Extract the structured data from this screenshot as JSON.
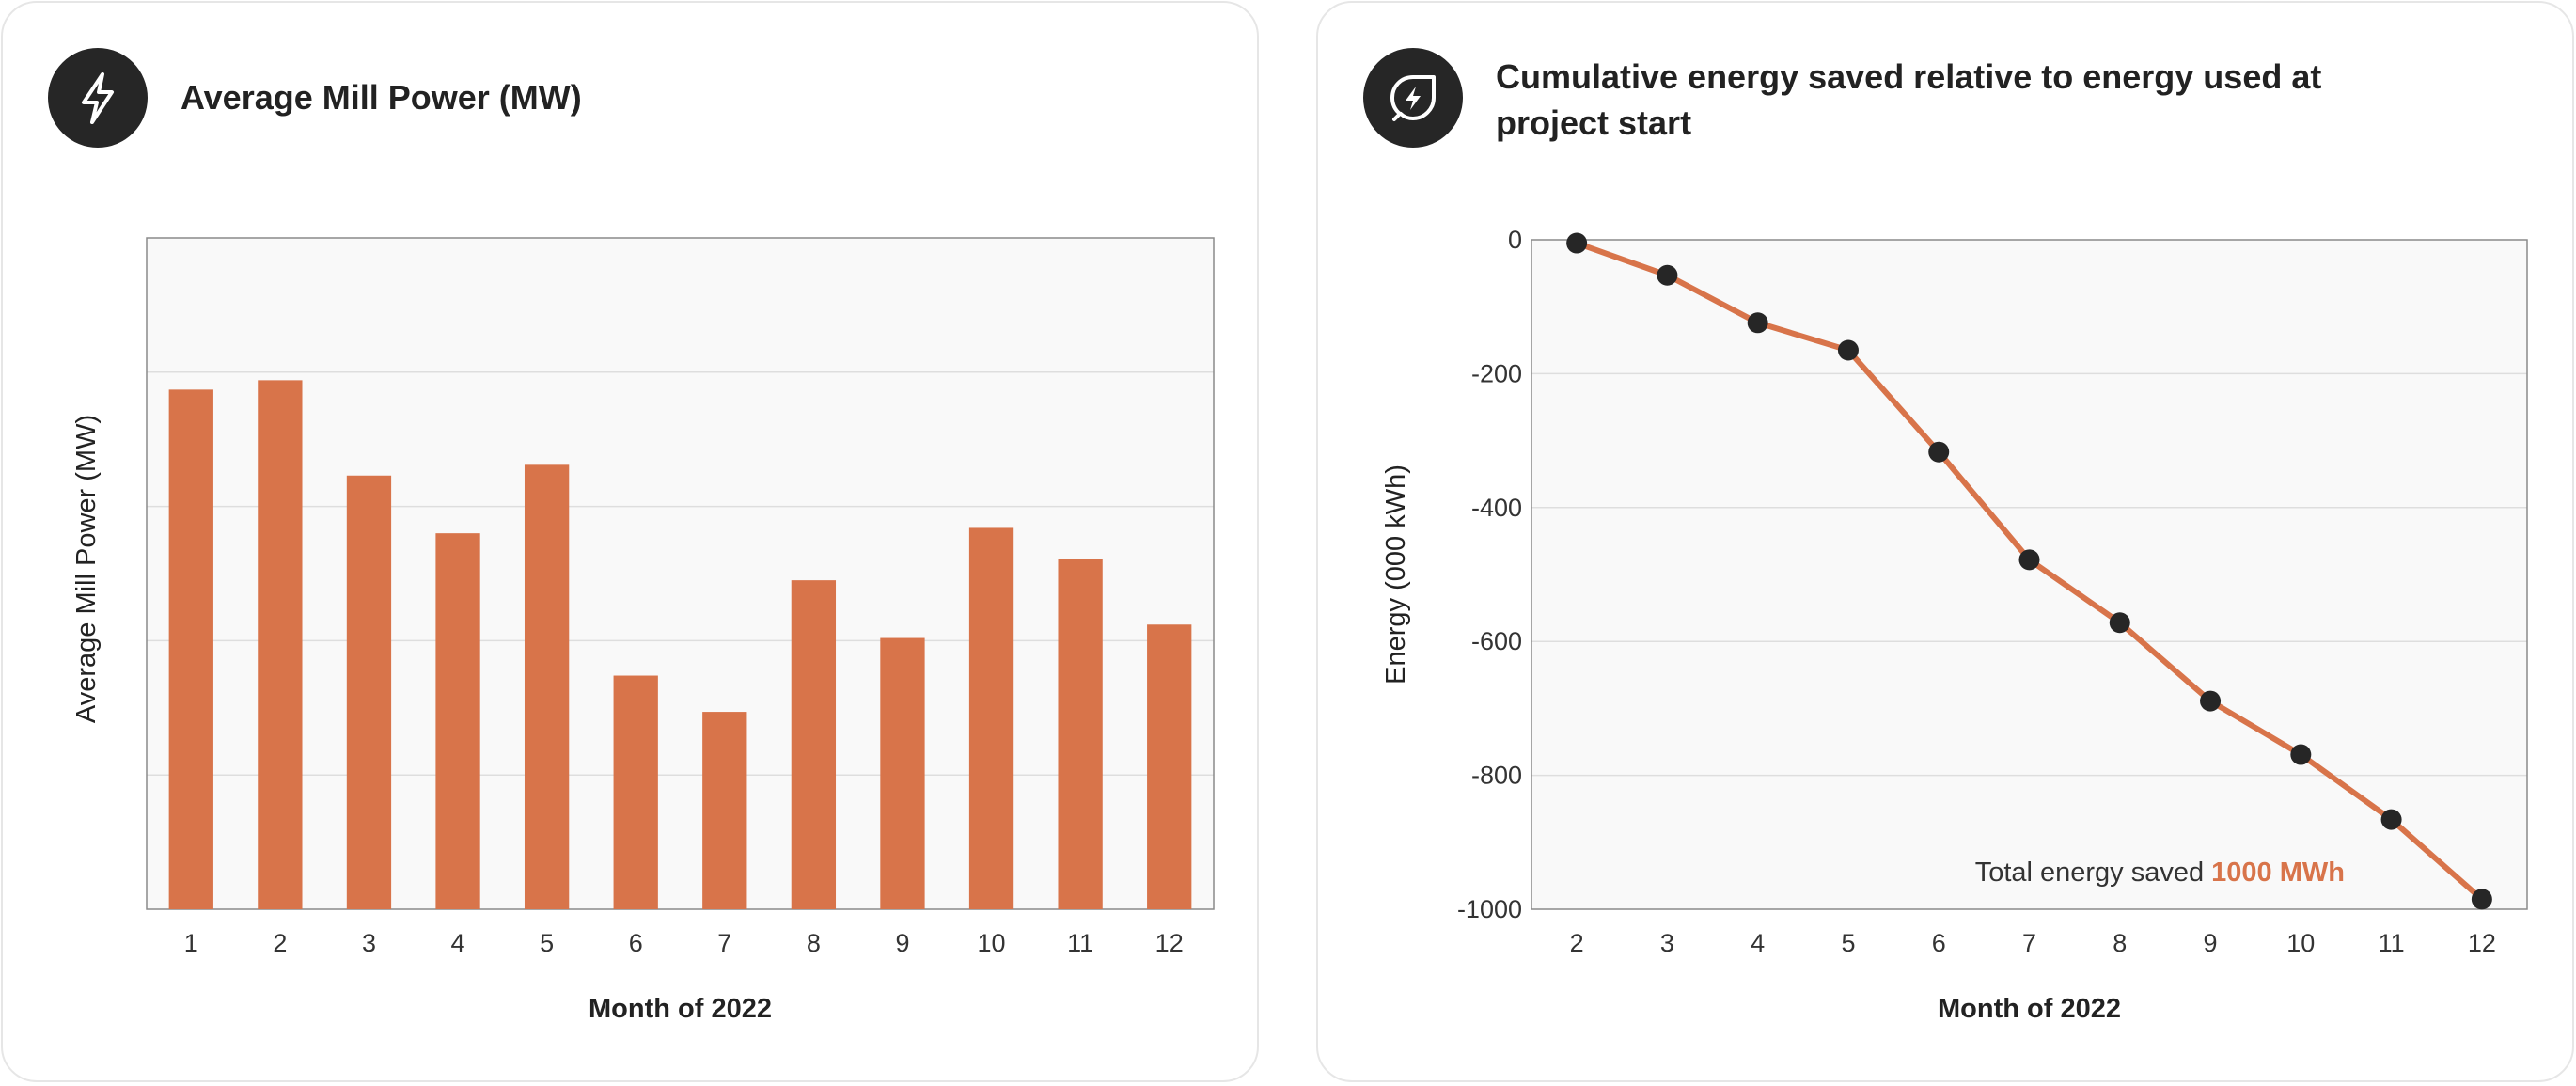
{
  "colors": {
    "accent": "#d8744a",
    "plot_bg": "#f9f9f9",
    "grid": "#dedede",
    "icon_bg": "#262626",
    "marker": "#262626"
  },
  "left_card": {
    "icon": "lightning-bolt-icon",
    "title": "Average Mill Power (MW)"
  },
  "right_card": {
    "icon": "leaf-bolt-icon",
    "title": "Cumulative energy saved relative to energy used at project start",
    "note_prefix": "Total energy saved ",
    "note_value": "1000 MWh"
  },
  "chart_data": [
    {
      "type": "bar",
      "title": "Average Mill Power (MW)",
      "xlabel": "Month of 2022",
      "ylabel": "Average Mill Power (MW)",
      "categories": [
        "1",
        "2",
        "3",
        "4",
        "5",
        "6",
        "7",
        "8",
        "9",
        "10",
        "11",
        "12"
      ],
      "values": [
        3.87,
        3.94,
        3.23,
        2.8,
        3.31,
        1.74,
        1.47,
        2.45,
        2.02,
        2.84,
        2.61,
        2.12
      ],
      "ylim": [
        0,
        5
      ],
      "yticks_labeled": false,
      "grid": true
    },
    {
      "type": "line",
      "title": "Cumulative energy saved relative to energy used at project start",
      "xlabel": "Month of 2022",
      "ylabel": "Energy (000 kWh)",
      "x": [
        2,
        3,
        4,
        5,
        6,
        7,
        8,
        9,
        10,
        11,
        12
      ],
      "y": [
        -5,
        -53,
        -124,
        -165,
        -317,
        -478,
        -572,
        -689,
        -769,
        -866,
        -985
      ],
      "xticks": [
        "2",
        "3",
        "4",
        "5",
        "6",
        "7",
        "8",
        "9",
        "10",
        "11",
        "12"
      ],
      "yticks": [
        0,
        -200,
        -400,
        -600,
        -800,
        -1000
      ],
      "ytick_labels": [
        "0",
        "-200",
        "-400",
        "-600",
        "-800",
        "-1000"
      ],
      "ylim": [
        -1000,
        0
      ],
      "grid": true,
      "markers": true,
      "annotation": "Total energy saved 1000 MWh"
    }
  ]
}
